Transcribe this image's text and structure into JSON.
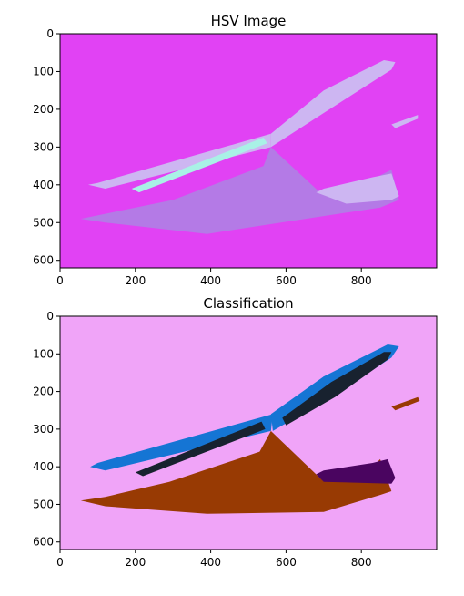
{
  "chart_data": [
    {
      "type": "heatmap",
      "title": "HSV Image",
      "x_ticks": [
        "0",
        "200",
        "400",
        "600",
        "800"
      ],
      "y_ticks": [
        "0",
        "100",
        "200",
        "300",
        "400",
        "500",
        "600"
      ],
      "xlim": [
        0,
        1000
      ],
      "ylim": [
        620,
        0
      ],
      "colors": {
        "background": "#e142f4",
        "region": "#b47ae6",
        "light": "#cdb6f2",
        "bright": "#a9f1e6"
      },
      "regions": [
        {
          "name": "upper-band",
          "fill": "light",
          "points": [
            [
              75,
              400
            ],
            [
              120,
              410
            ],
            [
              560,
              300
            ],
            [
              560,
              265
            ],
            [
              100,
              395
            ]
          ]
        },
        {
          "name": "bright-strip",
          "fill": "bright",
          "points": [
            [
              190,
              410
            ],
            [
              210,
              420
            ],
            [
              550,
              290
            ],
            [
              540,
              275
            ]
          ]
        },
        {
          "name": "right-body",
          "fill": "light",
          "points": [
            [
              560,
              265
            ],
            [
              560,
              300
            ],
            [
              700,
              210
            ],
            [
              880,
              95
            ],
            [
              890,
              75
            ],
            [
              860,
              70
            ],
            [
              700,
              150
            ]
          ]
        },
        {
          "name": "lower-wedge",
          "fill": "region",
          "points": [
            [
              55,
              490
            ],
            [
              120,
              500
            ],
            [
              390,
              530
            ],
            [
              850,
              460
            ],
            [
              900,
              440
            ],
            [
              880,
              360
            ],
            [
              820,
              390
            ],
            [
              690,
              420
            ],
            [
              560,
              300
            ],
            [
              540,
              350
            ],
            [
              300,
              440
            ]
          ]
        },
        {
          "name": "right-patch",
          "fill": "light",
          "points": [
            [
              680,
              420
            ],
            [
              760,
              450
            ],
            [
              880,
              440
            ],
            [
              900,
              430
            ],
            [
              880,
              370
            ],
            [
              830,
              380
            ],
            [
              700,
              410
            ]
          ]
        },
        {
          "name": "top-flare",
          "fill": "light",
          "points": [
            [
              880,
              240
            ],
            [
              950,
              215
            ],
            [
              950,
              225
            ],
            [
              890,
              250
            ]
          ]
        }
      ]
    },
    {
      "type": "heatmap",
      "title": "Classification",
      "x_ticks": [
        "0",
        "200",
        "400",
        "600",
        "800"
      ],
      "y_ticks": [
        "0",
        "100",
        "200",
        "300",
        "400",
        "500",
        "600"
      ],
      "xlim": [
        0,
        1000
      ],
      "ylim": [
        620,
        0
      ],
      "colors": {
        "background": "#f0a4f8",
        "brown": "#983a03",
        "blue": "#1575d4",
        "dark": "#18222f",
        "purple": "#4a0560"
      },
      "regions": [
        {
          "name": "brown-wedge",
          "fill": "brown",
          "points": [
            [
              55,
              490
            ],
            [
              120,
              505
            ],
            [
              390,
              525
            ],
            [
              700,
              520
            ],
            [
              850,
              475
            ],
            [
              880,
              465
            ],
            [
              850,
              380
            ],
            [
              830,
              400
            ],
            [
              690,
              430
            ],
            [
              560,
              305
            ],
            [
              530,
              360
            ],
            [
              290,
              440
            ],
            [
              120,
              480
            ]
          ]
        },
        {
          "name": "flare",
          "fill": "brown",
          "points": [
            [
              880,
              240
            ],
            [
              950,
              215
            ],
            [
              955,
              225
            ],
            [
              890,
              250
            ]
          ]
        },
        {
          "name": "upper-blue",
          "fill": "blue",
          "points": [
            [
              80,
              400
            ],
            [
              120,
              410
            ],
            [
              560,
              305
            ],
            [
              565,
              260
            ],
            [
              100,
              390
            ]
          ]
        },
        {
          "name": "right-blue",
          "fill": "blue",
          "points": [
            [
              560,
              260
            ],
            [
              565,
              305
            ],
            [
              720,
              215
            ],
            [
              880,
              110
            ],
            [
              900,
              80
            ],
            [
              870,
              75
            ],
            [
              700,
              160
            ]
          ]
        },
        {
          "name": "dark-strip",
          "fill": "dark",
          "points": [
            [
              200,
              415
            ],
            [
              220,
              425
            ],
            [
              545,
              300
            ],
            [
              535,
              280
            ]
          ]
        },
        {
          "name": "right-dark",
          "fill": "dark",
          "points": [
            [
              590,
              270
            ],
            [
              600,
              290
            ],
            [
              730,
              215
            ],
            [
              870,
              115
            ],
            [
              880,
              95
            ],
            [
              860,
              95
            ],
            [
              720,
              175
            ]
          ]
        },
        {
          "name": "purple-patch",
          "fill": "purple",
          "points": [
            [
              680,
              420
            ],
            [
              700,
              440
            ],
            [
              880,
              445
            ],
            [
              890,
              430
            ],
            [
              870,
              380
            ],
            [
              830,
              390
            ],
            [
              700,
              410
            ]
          ]
        }
      ]
    }
  ]
}
